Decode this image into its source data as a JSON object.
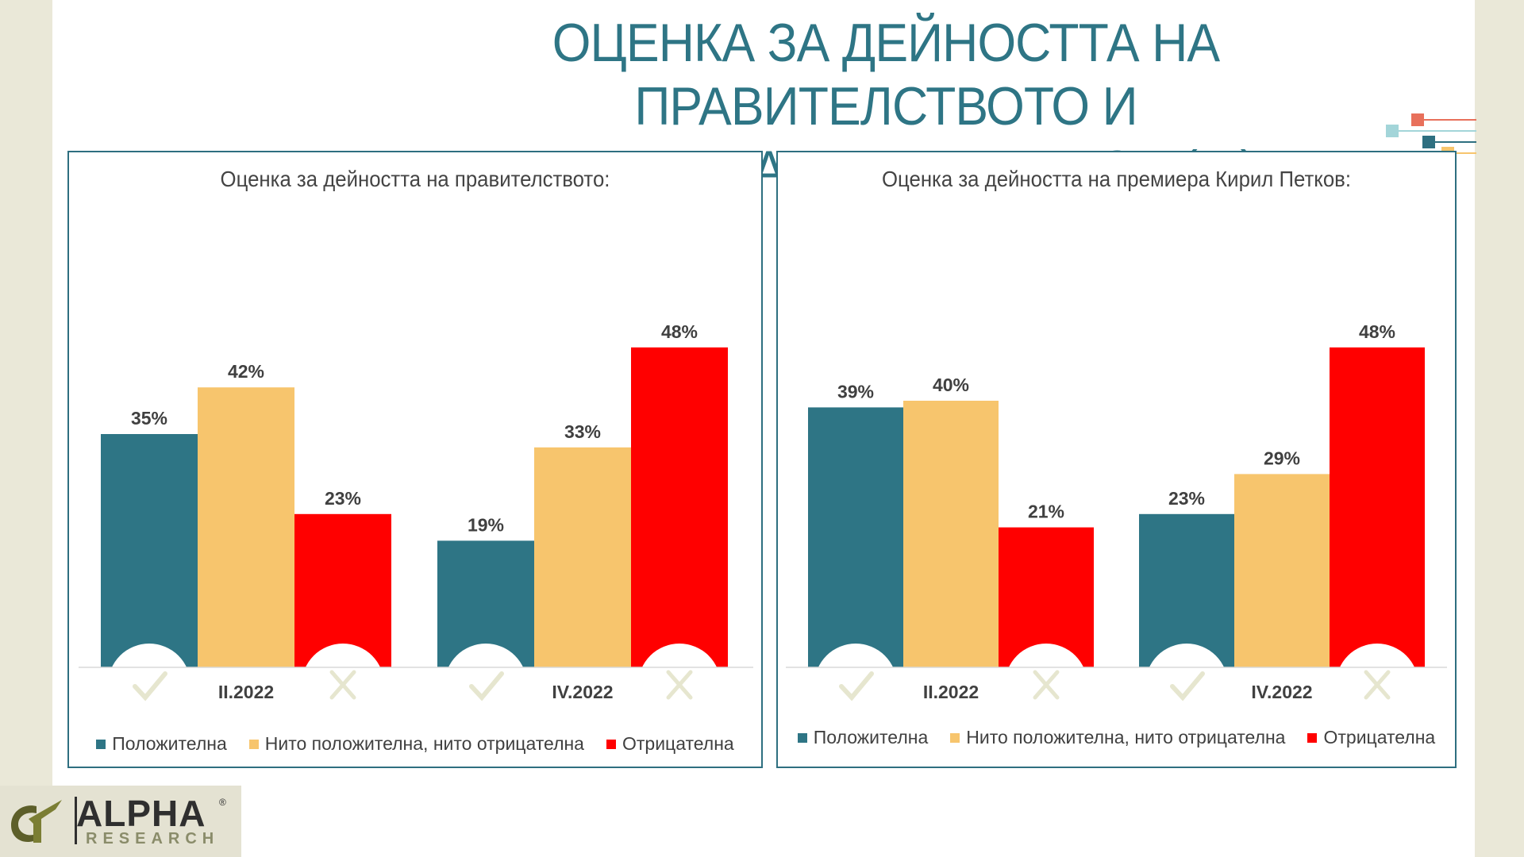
{
  "slide": {
    "title_line1": "ОЦЕНКА ЗА ДЕЙНОСТТА НА ПРАВИТЕЛСТВОТО И",
    "title_line2": "ПРЕМИЕРА КИРИЛ ПЕТКОВ (%)"
  },
  "colors": {
    "positive": "#2e7585",
    "neutral": "#f7c56d",
    "negative": "#ff0000",
    "title": "#2e7585",
    "panel_border": "#2e6f80",
    "icon_bg": "#ffffff",
    "icon_mark": "#e6e6cf"
  },
  "legend": {
    "positive": "Положителна",
    "neutral": "Нито положителна, нито отрицателна",
    "negative": "Отрицателна"
  },
  "chart_data": [
    {
      "type": "bar",
      "title": "Оценка за дейността на правителството:",
      "categories": [
        "II.2022",
        "IV.2022"
      ],
      "series": [
        {
          "name": "Положителна",
          "values": [
            35,
            19
          ]
        },
        {
          "name": "Нито положителна, нито отрицателна",
          "values": [
            42,
            33
          ]
        },
        {
          "name": "Отрицателна",
          "values": [
            23,
            48
          ]
        }
      ],
      "value_suffix": "%",
      "ylim": [
        0,
        55
      ],
      "legend_position": "bottom",
      "grid": false
    },
    {
      "type": "bar",
      "title": "Оценка за дейността на премиера Кирил Петков:",
      "categories": [
        "II.2022",
        "IV.2022"
      ],
      "series": [
        {
          "name": "Положителна",
          "values": [
            39,
            23
          ]
        },
        {
          "name": "Нито положителна, нито отрицателна",
          "values": [
            40,
            29
          ]
        },
        {
          "name": "Отрицателна",
          "values": [
            21,
            48
          ]
        }
      ],
      "value_suffix": "%",
      "ylim": [
        0,
        55
      ],
      "legend_position": "bottom",
      "grid": false
    }
  ],
  "logo": {
    "alpha": "ALPHA",
    "research": "RESEARCH",
    "registered": "®"
  }
}
